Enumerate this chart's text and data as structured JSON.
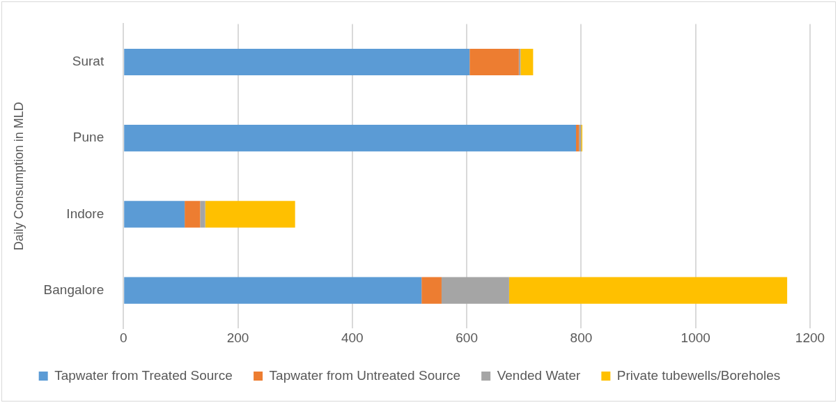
{
  "chart_data": {
    "type": "bar",
    "orientation": "horizontal",
    "stacked": true,
    "ylabel": "Daily Consumption in MLD",
    "categories": [
      "Surat",
      "Pune",
      "Indore",
      "Bangalore"
    ],
    "series": [
      {
        "name": "Tapwater from Treated Source",
        "color": "#5b9bd5",
        "values": [
          605,
          791,
          107,
          521
        ]
      },
      {
        "name": "Tapwater from Untreated Source",
        "color": "#ed7d31",
        "values": [
          86,
          5,
          27,
          35
        ]
      },
      {
        "name": "Vended Water",
        "color": "#a5a5a5",
        "values": [
          3,
          4,
          9,
          118
        ]
      },
      {
        "name": "Private tubewells/Boreholes",
        "color": "#ffc000",
        "values": [
          22,
          2,
          157,
          486
        ]
      }
    ],
    "xlim": [
      0,
      1200
    ],
    "xticks": [
      0,
      200,
      400,
      600,
      800,
      1000,
      1200
    ],
    "grid": "x",
    "legend": "bottom"
  }
}
